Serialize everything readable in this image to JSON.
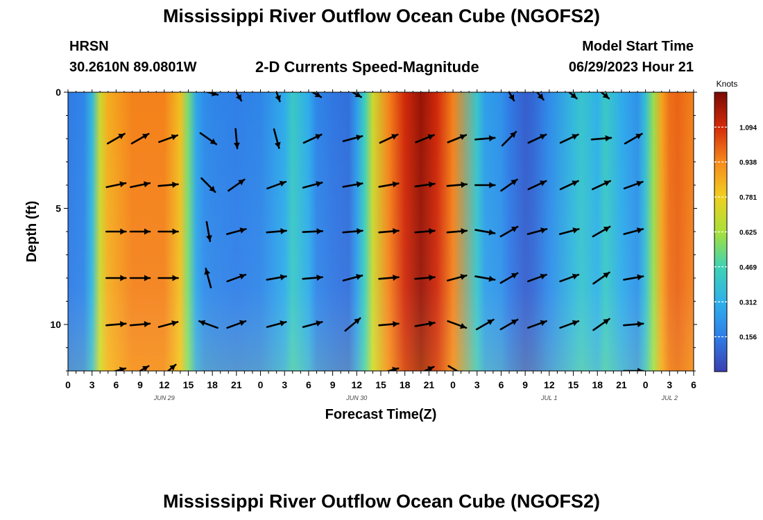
{
  "header": {
    "title": "Mississippi River Outflow Ocean Cube (NGOFS2)",
    "station": "HRSN",
    "coords": "30.2610N  89.0801W",
    "subtitle": "2-D Currents Speed-Magnitude",
    "model_start_label": "Model Start Time",
    "model_start_value": "06/29/2023 Hour 21",
    "footer_title": "Mississippi River Outflow Ocean Cube (NGOFS2)"
  },
  "colorbar": {
    "unit": "Knots",
    "ticks": [
      "1.094",
      "0.938",
      "0.781",
      "0.625",
      "0.469",
      "0.312",
      "0.156"
    ],
    "tick_values": [
      1.094,
      0.938,
      0.781,
      0.625,
      0.469,
      0.312,
      0.156
    ],
    "range": [
      0.0,
      1.25
    ],
    "colors": [
      "#3b3fb0",
      "#2f7ee8",
      "#2fb0ea",
      "#3fd3b4",
      "#a8e03a",
      "#f0d021",
      "#f78a1d",
      "#d42a0a",
      "#7a0a04"
    ]
  },
  "chart_data": {
    "type": "heatmap",
    "title": "2-D Currents Speed-Magnitude",
    "xlabel": "Forecast Time(Z)",
    "ylabel": "Depth (ft)",
    "x_ticks": [
      "0",
      "3",
      "6",
      "9",
      "12",
      "15",
      "18",
      "21",
      "0",
      "3",
      "6",
      "9",
      "12",
      "15",
      "18",
      "21",
      "0",
      "3",
      "6",
      "9",
      "12",
      "15",
      "18",
      "21",
      "0",
      "3",
      "6"
    ],
    "day_labels": [
      {
        "text": "JUN 29",
        "hour": 12
      },
      {
        "text": "JUN 30",
        "hour": 36
      },
      {
        "text": "JUL 1",
        "hour": 60
      },
      {
        "text": "JUL 2",
        "hour": 75
      }
    ],
    "x_range_hours": [
      0,
      78
    ],
    "y_ticks": [
      "0",
      "5",
      "10"
    ],
    "y_tick_values": [
      0,
      5,
      10
    ],
    "y_range_ft": [
      0,
      12
    ],
    "unit": "Knots",
    "surface_speed_profile": {
      "hours": [
        0,
        2,
        3,
        4,
        5,
        8,
        12,
        14,
        15,
        16,
        17,
        18,
        21,
        24,
        27,
        28,
        30,
        31,
        33,
        35,
        36,
        37,
        38,
        40,
        42,
        44,
        46,
        48,
        51,
        52,
        54,
        55,
        57,
        58,
        60,
        63,
        64,
        66,
        67,
        69,
        71,
        72,
        73,
        74,
        75,
        76,
        78
      ],
      "speed_knots": [
        0.15,
        0.18,
        0.35,
        0.7,
        0.86,
        0.95,
        0.95,
        0.82,
        0.55,
        0.28,
        0.2,
        0.18,
        0.16,
        0.18,
        0.3,
        0.42,
        0.3,
        0.18,
        0.14,
        0.12,
        0.25,
        0.45,
        0.7,
        0.95,
        1.1,
        1.2,
        1.1,
        0.95,
        0.4,
        0.26,
        0.22,
        0.15,
        0.08,
        0.1,
        0.2,
        0.35,
        0.4,
        0.32,
        0.42,
        0.3,
        0.22,
        0.38,
        0.6,
        0.88,
        0.98,
        1.0,
        0.95
      ]
    },
    "vector_rows_ft": [
      0,
      2,
      4,
      6,
      8,
      10,
      12
    ],
    "vector_hours": [
      6,
      9,
      12.5,
      17.5,
      21,
      26,
      30.5,
      35.5,
      40,
      44.5,
      48.5,
      52,
      55,
      58.5,
      62.5,
      66.5,
      70.5,
      76
    ],
    "vector_angles_deg": [
      [
        null,
        null,
        null,
        -15,
        -60,
        -70,
        -30,
        -30,
        null,
        null,
        null,
        null,
        -60,
        -50,
        -40,
        -40,
        null,
        null
      ],
      [
        30,
        30,
        20,
        -35,
        -85,
        -75,
        25,
        15,
        25,
        22,
        22,
        5,
        45,
        25,
        25,
        5,
        30,
        null
      ],
      [
        12,
        12,
        5,
        -45,
        35,
        20,
        15,
        10,
        10,
        8,
        5,
        0,
        35,
        25,
        25,
        25,
        20,
        null
      ],
      [
        0,
        0,
        0,
        -80,
        15,
        5,
        3,
        5,
        5,
        5,
        5,
        -10,
        30,
        15,
        15,
        30,
        15,
        null
      ],
      [
        0,
        0,
        0,
        105,
        20,
        10,
        5,
        15,
        5,
        5,
        15,
        -10,
        30,
        20,
        20,
        35,
        10,
        null
      ],
      [
        5,
        5,
        15,
        160,
        20,
        15,
        15,
        40,
        5,
        10,
        -20,
        30,
        30,
        20,
        20,
        35,
        5,
        null
      ],
      [
        15,
        30,
        40,
        null,
        null,
        null,
        null,
        null,
        15,
        25,
        -30,
        null,
        null,
        null,
        null,
        null,
        0,
        null
      ]
    ]
  }
}
